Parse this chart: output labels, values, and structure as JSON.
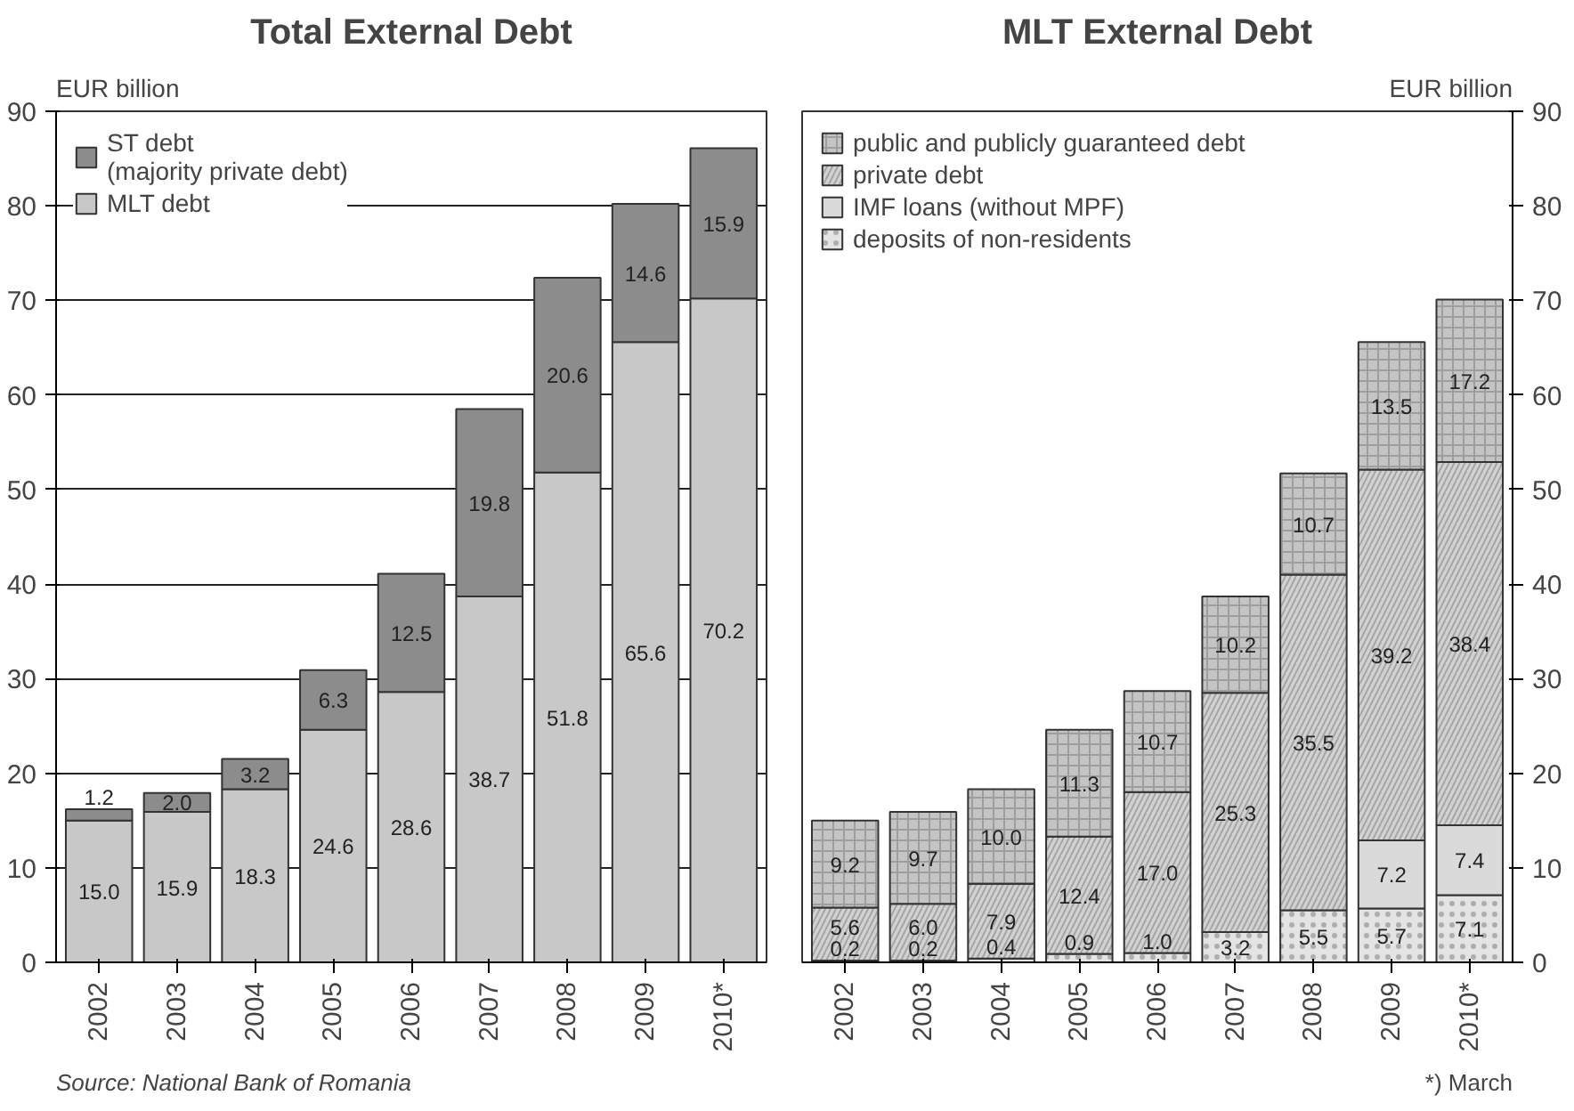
{
  "chart_data": [
    {
      "type": "bar",
      "title": "Total External Debt",
      "ylabel": "EUR billion",
      "categories": [
        "2002",
        "2003",
        "2004",
        "2005",
        "2006",
        "2007",
        "2008",
        "2009",
        "2010*"
      ],
      "stacked": true,
      "legend": "top left",
      "grid": "y",
      "ylim": [
        0,
        90
      ],
      "yticks": [
        0,
        10,
        20,
        30,
        40,
        50,
        60,
        70,
        80,
        90
      ],
      "series": [
        {
          "name": "MLT debt",
          "color": "#c8c8c8",
          "values": [
            15.0,
            15.9,
            18.3,
            24.6,
            28.6,
            38.7,
            51.8,
            65.6,
            70.2
          ],
          "value_labels": [
            "15.0",
            "15.9",
            "18.3",
            "24.6",
            "28.6",
            "38.7",
            "51.8",
            "65.6",
            "70.2"
          ]
        },
        {
          "name": "ST debt\n(majority private debt)",
          "color": "#8c8c8c",
          "values": [
            1.2,
            2.0,
            3.2,
            6.3,
            12.5,
            19.8,
            20.6,
            14.6,
            15.9
          ],
          "value_labels": [
            "1.2",
            "2.0",
            "3.2",
            "6.3",
            "12.5",
            "19.8",
            "20.6",
            "14.6",
            "15.9"
          ]
        }
      ],
      "annotations": [
        "Source: National Bank of Romania"
      ]
    },
    {
      "type": "bar",
      "title": "MLT External Debt",
      "y2label": "EUR billion",
      "categories": [
        "2002",
        "2003",
        "2004",
        "2005",
        "2006",
        "2007",
        "2008",
        "2009",
        "2010*"
      ],
      "stacked": true,
      "legend": "top left",
      "grid": "y",
      "y2lim": [
        0,
        90
      ],
      "y2ticks": [
        0,
        10,
        20,
        30,
        40,
        50,
        60,
        70,
        80,
        90
      ],
      "series": [
        {
          "name": "deposits of non-residents",
          "color": "#e4e4e4",
          "axis": "y2",
          "values": [
            0.2,
            0.2,
            0.4,
            0.9,
            1.0,
            3.2,
            5.5,
            5.7,
            7.1
          ],
          "value_labels": [
            "0.2",
            "0.2",
            "0.4",
            "0.9",
            "1.0",
            "3.2",
            "5.5",
            "5.7",
            "7.1"
          ]
        },
        {
          "name": "IMF loans (without MPF)",
          "color": "#dadada",
          "axis": "y2",
          "values": [
            null,
            null,
            null,
            null,
            null,
            null,
            null,
            7.2,
            7.4
          ],
          "value_labels": [
            null,
            null,
            null,
            null,
            null,
            null,
            null,
            "7.2",
            "7.4"
          ]
        },
        {
          "name": "private debt",
          "color": "#d2d2d2",
          "axis": "y2",
          "values": [
            5.6,
            6.0,
            7.9,
            12.4,
            17.0,
            25.3,
            35.5,
            39.2,
            38.4
          ],
          "value_labels": [
            "5.6",
            "6.0",
            "7.9",
            "12.4",
            "17.0",
            "25.3",
            "35.5",
            "39.2",
            "38.4"
          ]
        },
        {
          "name": "public and publicly guaranteed debt",
          "color": "#c4c4c4",
          "axis": "y2",
          "values": [
            9.2,
            9.7,
            10.0,
            11.3,
            10.7,
            10.2,
            10.7,
            13.5,
            17.2
          ],
          "value_labels": [
            "9.2",
            "9.7",
            "10.0",
            "11.3",
            "10.7",
            "10.2",
            "10.7",
            "13.5",
            "17.2"
          ]
        }
      ],
      "annotations": [
        "*) March"
      ]
    }
  ]
}
